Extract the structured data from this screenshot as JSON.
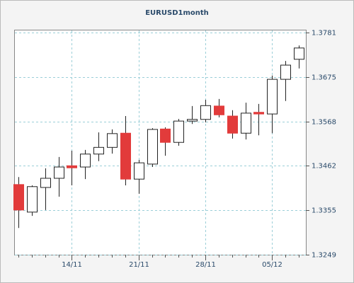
{
  "chart_data": {
    "type": "candlestick",
    "title": "EURUSD1month",
    "categories": [
      null,
      null,
      null,
      null,
      "14/11",
      null,
      null,
      null,
      null,
      "21/11",
      null,
      null,
      null,
      null,
      "28/11",
      null,
      null,
      null,
      null,
      "05/12",
      null,
      null
    ],
    "open": [
      1.3417,
      1.3351,
      1.341,
      1.3432,
      1.3462,
      1.3459,
      1.349,
      1.3506,
      1.354,
      1.343,
      1.3466,
      1.355,
      1.3518,
      1.3569,
      1.3573,
      1.3605,
      1.3581,
      1.354,
      1.359,
      1.3586,
      1.3669,
      1.3717
    ],
    "high": [
      1.3435,
      1.3415,
      1.3456,
      1.3483,
      1.3498,
      1.35,
      1.3542,
      1.3549,
      1.3581,
      1.3476,
      1.3552,
      1.3554,
      1.3574,
      1.3605,
      1.362,
      1.3622,
      1.3595,
      1.3613,
      1.361,
      1.3678,
      1.3713,
      1.375
    ],
    "low": [
      1.3313,
      1.3342,
      1.3356,
      1.3388,
      1.3415,
      1.343,
      1.3473,
      1.3491,
      1.3415,
      1.3395,
      1.3459,
      1.3486,
      1.351,
      1.3562,
      1.3566,
      1.3578,
      1.3527,
      1.3525,
      1.3535,
      1.354,
      1.3617,
      1.3695
    ],
    "close": [
      1.3356,
      1.3412,
      1.3432,
      1.3459,
      1.3457,
      1.349,
      1.3506,
      1.3539,
      1.343,
      1.3469,
      1.3549,
      1.3518,
      1.3569,
      1.3573,
      1.3606,
      1.3584,
      1.354,
      1.3588,
      1.3586,
      1.3669,
      1.3703,
      1.3744
    ],
    "up_color": "#ffffff",
    "down_color": "#e23b3b",
    "ylim": [
      1.3249,
      1.3781
    ],
    "yticks": [
      1.3249,
      1.3355,
      1.3462,
      1.3568,
      1.3675,
      1.3781
    ],
    "grid": true
  }
}
